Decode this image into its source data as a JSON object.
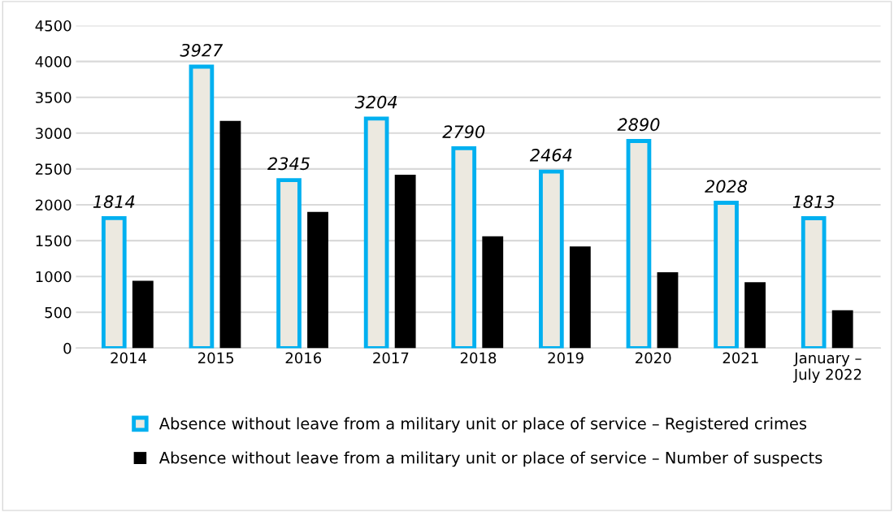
{
  "chart_data": {
    "type": "bar",
    "categories": [
      "2014",
      "2015",
      "2016",
      "2017",
      "2018",
      "2019",
      "2020",
      "2021",
      "January –\nJuly 2022"
    ],
    "series": [
      {
        "name": "Absence without leave from a military unit or place of service – Registered crimes",
        "color": "#00b0f0",
        "values": [
          1814,
          3927,
          2345,
          3204,
          2790,
          2464,
          2890,
          2028,
          1813
        ],
        "value_labels": [
          "1814",
          "3927",
          "2345",
          "3204",
          "2790",
          "2464",
          "2890",
          "2028",
          "1813"
        ]
      },
      {
        "name": "Absence without leave from a military unit or place of service – Number of suspects",
        "color": "#000000",
        "values": [
          940,
          3170,
          1900,
          2420,
          1560,
          1420,
          1060,
          920,
          530
        ]
      }
    ],
    "ylim": [
      0,
      4500
    ],
    "yticks": [
      0,
      500,
      1000,
      1500,
      2000,
      2500,
      3000,
      3500,
      4000,
      4500
    ],
    "grid": "y",
    "legend": "bottom"
  }
}
